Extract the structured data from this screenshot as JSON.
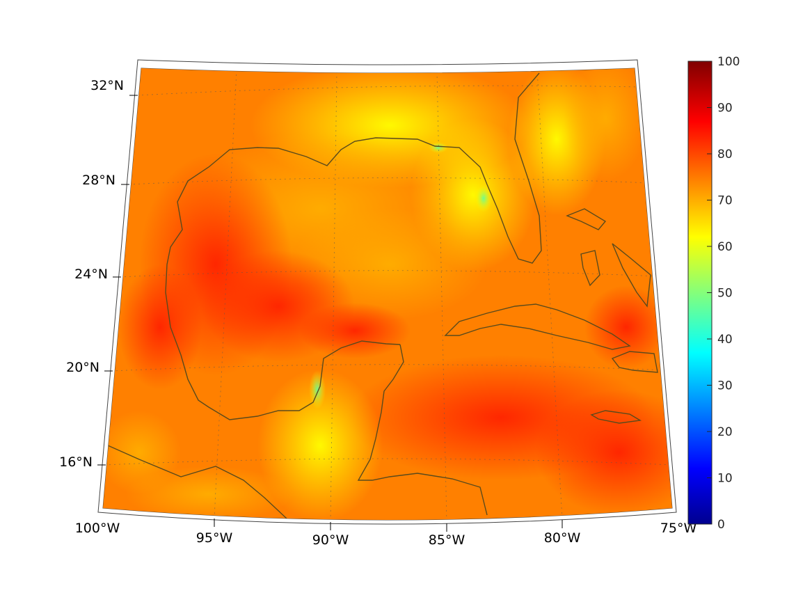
{
  "map": {
    "projection": "conic",
    "lon_labels": [
      "100°W",
      "95°W",
      "90°W",
      "85°W",
      "80°W",
      "75°W"
    ],
    "lat_labels": [
      "32°N",
      "28°N",
      "24°N",
      "20°N",
      "16°N"
    ],
    "colormap": "jet",
    "colorbar": {
      "ticks": [
        "0",
        "10",
        "20",
        "30",
        "40",
        "50",
        "60",
        "70",
        "80",
        "90",
        "100"
      ],
      "min": 0,
      "max": 100
    },
    "field_note_colors": {
      "dominant": "#ff7a00",
      "high": "#ff2a00",
      "low": "#ffff00"
    },
    "coastline_color": "#5a4a1c"
  }
}
